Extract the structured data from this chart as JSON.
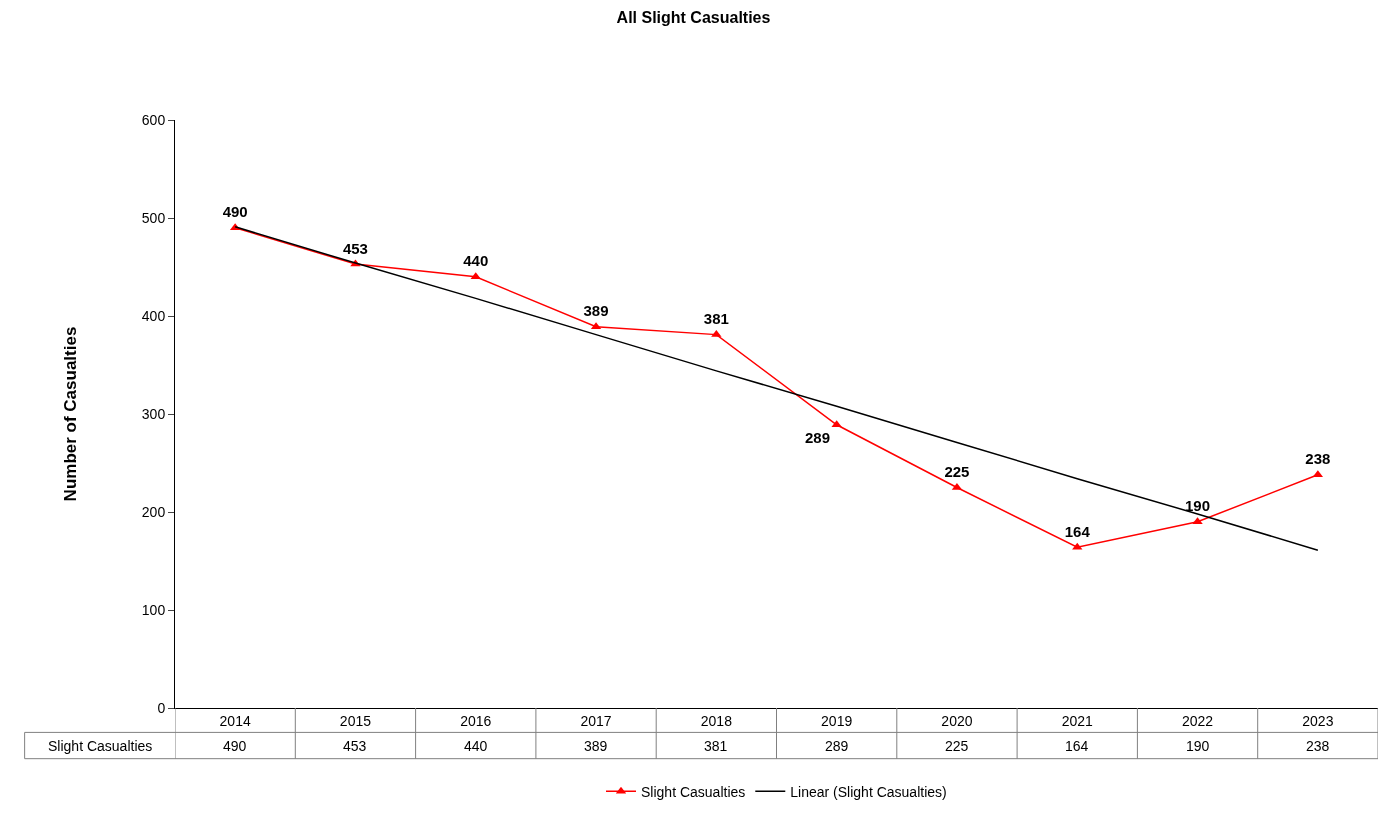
{
  "chart_data": {
    "type": "line",
    "title": "All Slight Casualties",
    "ylabel": "Number of Casualties",
    "categories": [
      "2014",
      "2015",
      "2016",
      "2017",
      "2018",
      "2019",
      "2020",
      "2021",
      "2022",
      "2023"
    ],
    "series": [
      {
        "name": "Slight Casualties",
        "color": "#ff0000",
        "marker": "triangle",
        "values": [
          490,
          453,
          440,
          389,
          381,
          289,
          225,
          164,
          190,
          238
        ],
        "value_labels": [
          "490",
          "453",
          "440",
          "389",
          "381",
          "289",
          "225",
          "164",
          "190",
          "238"
        ]
      },
      {
        "name": "Linear (Slight Casualties)",
        "color": "#000000",
        "marker": "none",
        "values": [
          491,
          454,
          418,
          381,
          344,
          308,
          271,
          234,
          198,
          161
        ]
      }
    ],
    "annotations": [
      "490",
      "453",
      "440",
      "389",
      "381",
      "289",
      "225",
      "164",
      "190",
      "238"
    ],
    "ylim": [
      0,
      600
    ],
    "yticks": [
      0,
      100,
      200,
      300,
      400,
      500,
      600
    ],
    "legend": "bottom"
  }
}
